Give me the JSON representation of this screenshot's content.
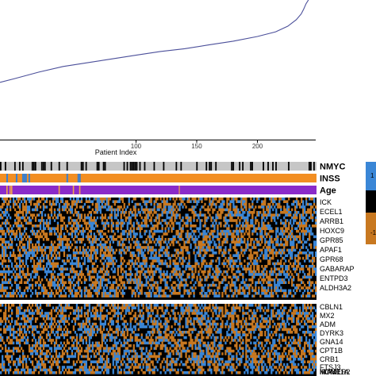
{
  "chart_data": [
    {
      "type": "line",
      "xlabel": "Patient Index",
      "xticks": [
        "100",
        "150",
        "200"
      ],
      "xtick_values": [
        100,
        150,
        200
      ],
      "xlim": [
        -12,
        248
      ],
      "ylim": [
        0,
        1
      ],
      "grid": false,
      "series_color": "#4b4f9a",
      "x": [
        -12,
        0,
        20,
        40,
        60,
        80,
        100,
        120,
        140,
        160,
        180,
        200,
        215,
        225,
        232,
        236,
        238,
        240,
        242
      ],
      "y": [
        0.12,
        0.16,
        0.23,
        0.29,
        0.33,
        0.37,
        0.41,
        0.45,
        0.48,
        0.52,
        0.56,
        0.61,
        0.66,
        0.72,
        0.79,
        0.85,
        0.9,
        0.96,
        1.0
      ]
    },
    {
      "type": "heatmap",
      "tracks": [
        {
          "name": "NMYC",
          "colors": [
            "#c6c6c6",
            "#000000"
          ]
        },
        {
          "name": "INSS",
          "colors": [
            "#f28e22",
            "#3a7fcd"
          ]
        },
        {
          "name": "Age",
          "colors": [
            "#8a2bc9",
            "#f2a34a"
          ]
        }
      ],
      "genes_top": [
        "ICK",
        "ECEL1",
        "ARRB1",
        "HOXC9",
        "GPR85",
        "APAF1",
        "GPR68",
        "GABARAP",
        "ENTPD3",
        "ALDH3A2"
      ],
      "genes_bottom": [
        "CBLN1",
        "MX2",
        "ADM",
        "DYRK3",
        "GNA14",
        "CPT1B",
        "CRB1",
        "FTSJ3",
        "HOMER2",
        "MTNR1A",
        "IRAK1"
      ],
      "palette": {
        "high": "#3a86d6",
        "mid": "#000000",
        "low": "#c87820"
      },
      "legend_ticks": [
        "1",
        "0",
        "-1"
      ]
    }
  ]
}
